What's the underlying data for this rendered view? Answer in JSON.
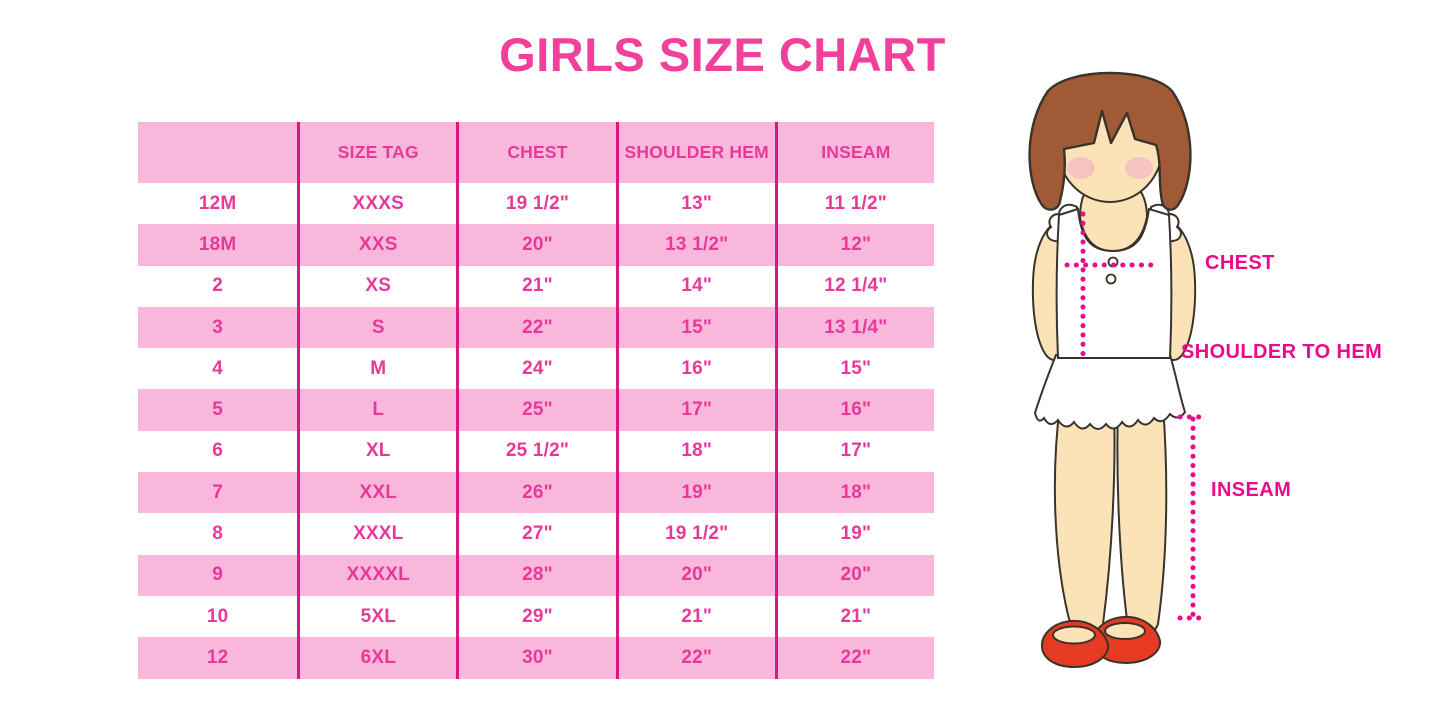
{
  "title": "GIRLS SIZE CHART",
  "colors": {
    "title_pink": "#f0409b",
    "table_text_pink": "#e8399b",
    "light_pink": "#f9b7db",
    "divider_pink": "#d6187f",
    "measure_pink": "#ec0a8c",
    "hair_brown": "#a05a36",
    "skin": "#fbe3b7",
    "blush": "#f3aec6",
    "outline": "#3a332c",
    "shoe_red": "#e73a23",
    "garment_white": "#ffffff"
  },
  "chart_data": {
    "type": "table",
    "title": "GIRLS SIZE CHART",
    "columns": [
      "",
      "SIZE TAG",
      "CHEST",
      "SHOULDER HEM",
      "INSEAM"
    ],
    "rows": [
      [
        "12M",
        "XXXS",
        "19 1/2\"",
        "13\"",
        "11 1/2\""
      ],
      [
        "18M",
        "XXS",
        "20\"",
        "13 1/2\"",
        "12\""
      ],
      [
        "2",
        "XS",
        "21\"",
        "14\"",
        "12 1/4\""
      ],
      [
        "3",
        "S",
        "22\"",
        "15\"",
        "13 1/4\""
      ],
      [
        "4",
        "M",
        "24\"",
        "16\"",
        "15\""
      ],
      [
        "5",
        "L",
        "25\"",
        "17\"",
        "16\""
      ],
      [
        "6",
        "XL",
        "25 1/2\"",
        "18\"",
        "17\""
      ],
      [
        "7",
        "XXL",
        "26\"",
        "19\"",
        "18\""
      ],
      [
        "8",
        "XXXL",
        "27\"",
        "19 1/2\"",
        "19\""
      ],
      [
        "9",
        "XXXXL",
        "28\"",
        "20\"",
        "20\""
      ],
      [
        "10",
        "5XL",
        "29\"",
        "21\"",
        "21\""
      ],
      [
        "12",
        "6XL",
        "30\"",
        "22\"",
        "22\""
      ]
    ],
    "annotations": [
      "CHEST",
      "SHOULDER TO HEM",
      "INSEAM"
    ],
    "legend_position": "none",
    "grid": "alternating-pink-rows"
  },
  "diagram": {
    "labels": {
      "chest": "CHEST",
      "shoulder_to_hem": "SHOULDER TO HEM",
      "inseam": "INSEAM"
    }
  }
}
